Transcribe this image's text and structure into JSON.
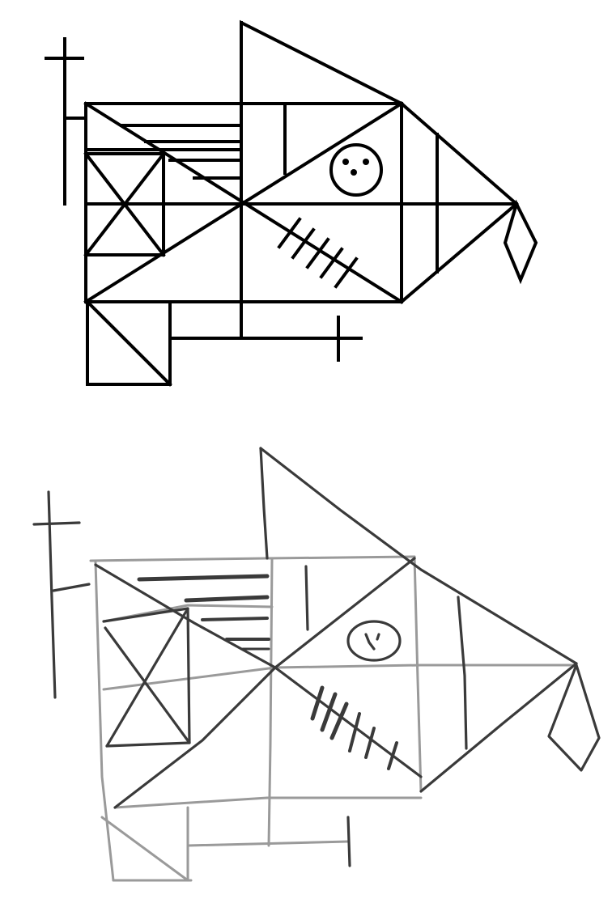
{
  "document": {
    "figures": [
      {
        "id": "original",
        "kind": "template drawing",
        "ink_color": "#000000"
      },
      {
        "id": "copy",
        "kind": "hand-drawn reproduction",
        "ink_color": "#3a3a3a"
      }
    ],
    "background_color": "#ffffff"
  }
}
